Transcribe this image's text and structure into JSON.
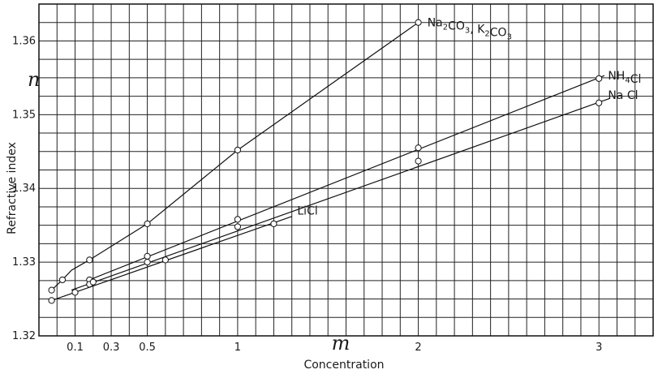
{
  "chart_data": {
    "type": "line",
    "xlabel": "Concentration",
    "ylabel": "Refractive index",
    "x_symbol": "m",
    "y_symbol": "n",
    "xlim": [
      -0.1,
      3.3
    ],
    "ylim": [
      1.32,
      1.365
    ],
    "x_ticks": [
      0.1,
      0.3,
      0.5,
      1,
      2,
      3
    ],
    "x_tick_labels": [
      "0.1",
      "0.3",
      "0.5",
      "1",
      "2",
      "3"
    ],
    "y_ticks": [
      1.32,
      1.33,
      1.34,
      1.35,
      1.36
    ],
    "y_tick_labels": [
      "1.32",
      "1.33",
      "1.34",
      "1.35",
      "1.36"
    ],
    "grid": true,
    "series": [
      {
        "name": "Na2CO3, K2CO3",
        "label_parts": [
          [
            "Na",
            ""
          ],
          [
            "2",
            "sub"
          ],
          [
            "CO",
            ""
          ],
          [
            "3",
            "sub"
          ],
          [
            ", K",
            ""
          ],
          [
            "2",
            "sub"
          ],
          [
            "CO",
            ""
          ],
          [
            "3",
            "sub"
          ]
        ],
        "line_x": [
          -0.03,
          0.03,
          0.08,
          0.13,
          0.18,
          0.5,
          1.0,
          2.0
        ],
        "line_y": [
          1.3262,
          1.3276,
          1.3289,
          1.3296,
          1.3303,
          1.3352,
          1.3452,
          1.3625
        ],
        "points_x": [
          -0.03,
          0.03,
          0.18,
          0.5,
          1.0,
          2.0
        ],
        "points_y": [
          1.3262,
          1.3276,
          1.3303,
          1.3352,
          1.3452,
          1.3625
        ]
      },
      {
        "name": "NH4Cl",
        "label_parts": [
          [
            "NH",
            ""
          ],
          [
            "4",
            "sub"
          ],
          [
            "Cl",
            ""
          ]
        ],
        "line_x": [
          0.18,
          3.03
        ],
        "line_y": [
          1.3276,
          1.3553
        ],
        "points_x": [
          0.18,
          0.5,
          1.0,
          2.0,
          3.0
        ],
        "points_y": [
          1.3276,
          1.3308,
          1.3358,
          1.3455,
          1.3549
        ]
      },
      {
        "name": "NaCl",
        "label_parts": [
          [
            "Na Cl",
            ""
          ]
        ],
        "line_x": [
          0.08,
          3.06
        ],
        "line_y": [
          1.3262,
          1.3522
        ],
        "points_x": [
          0.18,
          0.5,
          1.0,
          2.0,
          3.0
        ],
        "points_y": [
          1.327,
          1.33,
          1.3348,
          1.3437,
          1.3516
        ]
      },
      {
        "name": "LiCl",
        "label_parts": [
          [
            "LiCl",
            ""
          ]
        ],
        "line_x": [
          -0.03,
          1.3
        ],
        "line_y": [
          1.3248,
          1.3362
        ],
        "points_x": [
          -0.03,
          0.1,
          0.2,
          0.6,
          1.2
        ],
        "points_y": [
          1.3248,
          1.3259,
          1.3273,
          1.3303,
          1.3352
        ]
      }
    ]
  }
}
